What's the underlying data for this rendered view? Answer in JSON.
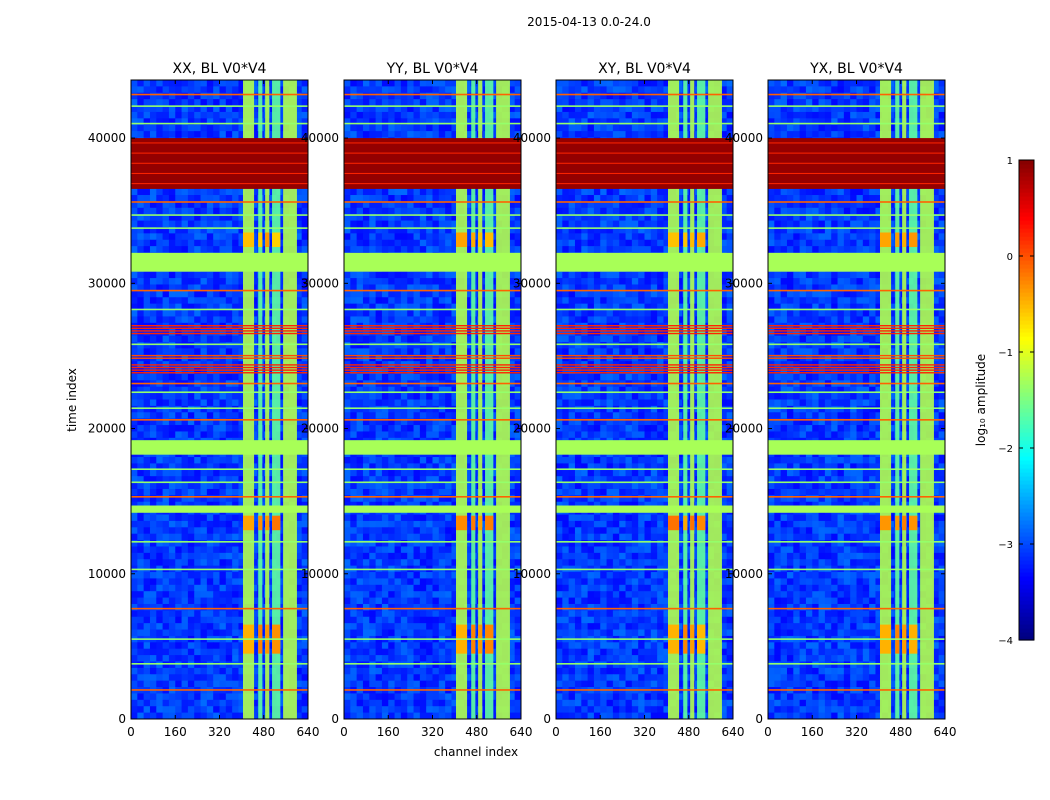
{
  "figure_title": "2015-04-13 0.0-24.0",
  "chart_data": {
    "type": "heatmap",
    "suptitle": "2015-04-13 0.0-24.0",
    "xlabel": "channel index",
    "ylabel": "time index",
    "xlim": [
      0,
      640
    ],
    "ylim": [
      0,
      44000
    ],
    "xticks": [
      0,
      160,
      320,
      480,
      640
    ],
    "yticks": [
      0,
      10000,
      20000,
      30000,
      40000
    ],
    "panels": [
      {
        "title": "XX, BL V0*V4",
        "variant": 0
      },
      {
        "title": "YY, BL V0*V4",
        "variant": 1
      },
      {
        "title": "XY, BL V0*V4",
        "variant": 2
      },
      {
        "title": "YX, BL V0*V4",
        "variant": 3
      }
    ],
    "colorbar": {
      "label": "log₁₀ amplitude",
      "range": [
        -4,
        1
      ],
      "ticks": [
        1,
        0,
        -1,
        -2,
        -3,
        -4
      ],
      "tick_labels": [
        "1",
        "0",
        "−1",
        "−2",
        "−3",
        "−4"
      ],
      "colormap": "jet"
    },
    "structure": {
      "background_level": -3.1,
      "band_channels": [
        [
          405,
          445
        ],
        [
          460,
          475
        ],
        [
          485,
          500
        ],
        [
          510,
          540
        ],
        [
          550,
          600
        ]
      ],
      "band_level": -1.3,
      "saturated_rows": [
        [
          36500,
          40000,
          0.9
        ]
      ],
      "flat_rows": [
        [
          30800,
          32100,
          -1.3
        ],
        [
          18200,
          19200,
          -1.3
        ],
        [
          14200,
          14700,
          -1.3
        ]
      ],
      "hot_rows": [
        [
          26500,
          27200,
          0.2
        ],
        [
          24800,
          25100,
          0.0
        ],
        [
          23800,
          24400,
          0.2
        ]
      ],
      "hot_band_patches": [
        [
          13000,
          14000,
          -0.3
        ],
        [
          4500,
          6500,
          -0.4
        ],
        [
          32500,
          33500,
          -0.5
        ]
      ]
    }
  }
}
